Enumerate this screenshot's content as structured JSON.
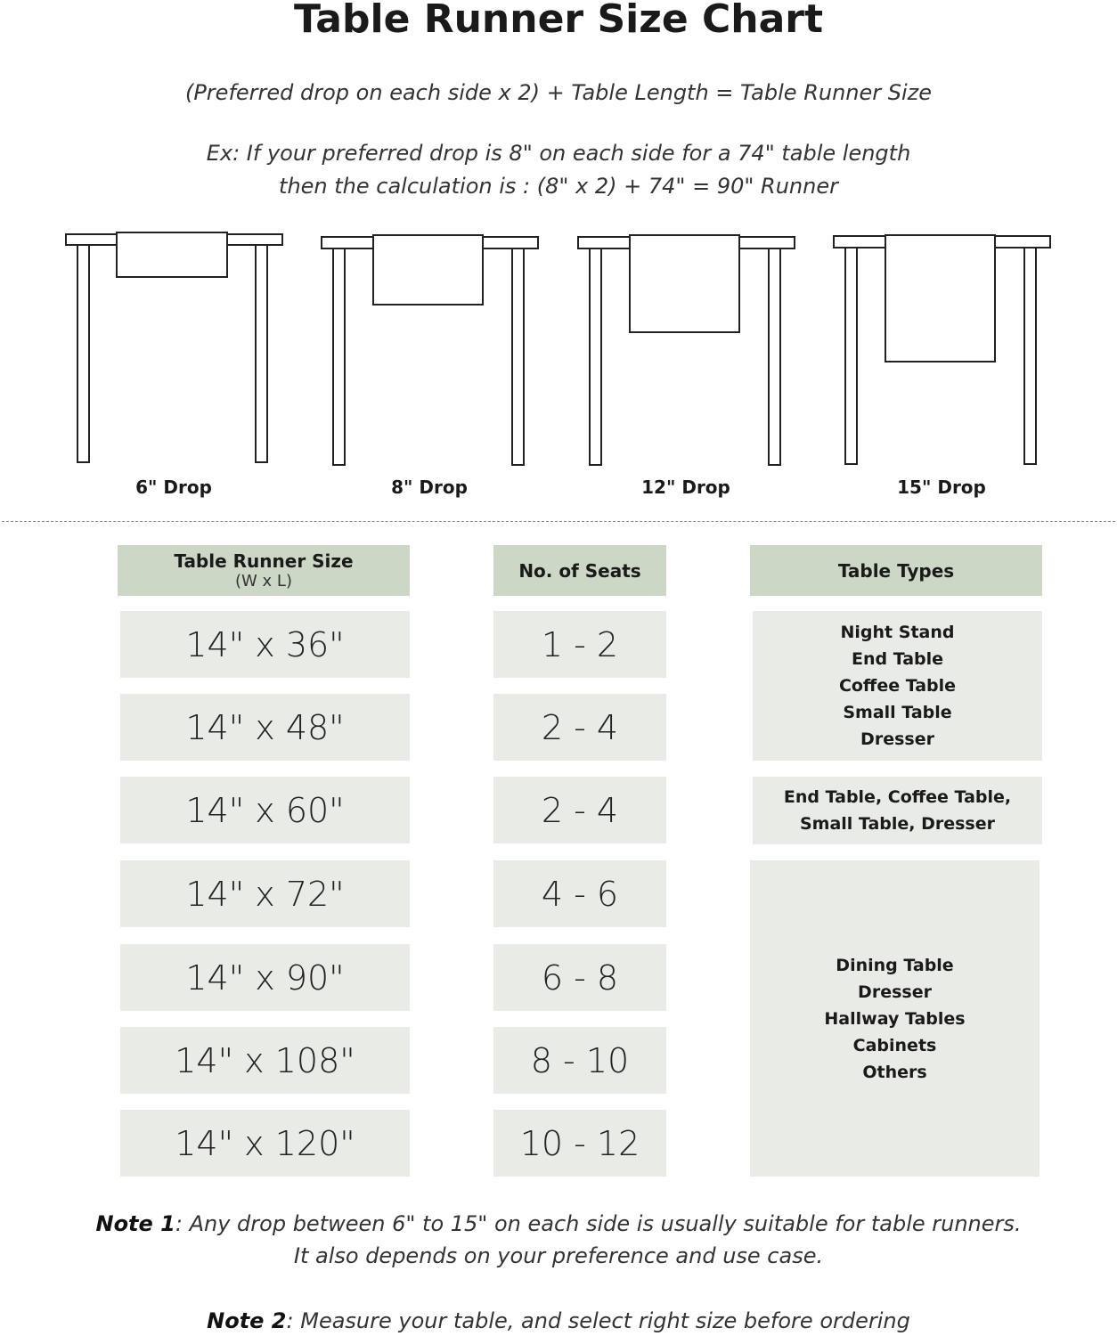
{
  "title": "Table Runner Size Chart",
  "formula": "(Preferred drop on each side x 2) + Table Length = Table Runner Size",
  "example_line1": "Ex: If your preferred drop is 8\" on each side for a 74\" table length",
  "example_line2": "then the calculation is : (8\" x 2) + 74\" = 90\" Runner",
  "drops": [
    {
      "label": "6\" Drop",
      "inches": 6
    },
    {
      "label": "8\" Drop",
      "inches": 8
    },
    {
      "label": "12\" Drop",
      "inches": 12
    },
    {
      "label": "15\" Drop",
      "inches": 15
    }
  ],
  "table": {
    "headers": {
      "size": "Table Runner Size",
      "size_sub": "(W x L)",
      "seats": "No. of Seats",
      "types": "Table Types"
    },
    "rows": [
      {
        "size": "14\" x 36\"",
        "seats": "1 - 2"
      },
      {
        "size": "14\" x 48\"",
        "seats": "2 - 4"
      },
      {
        "size": "14\" x 60\"",
        "seats": "2 - 4"
      },
      {
        "size": "14\" x 72\"",
        "seats": "4 - 6"
      },
      {
        "size": "14\" x 90\"",
        "seats": "6 - 8"
      },
      {
        "size": "14\" x 108\"",
        "seats": "8 - 10"
      },
      {
        "size": "14\" x 120\"",
        "seats": "10 - 12"
      }
    ],
    "type_groups": [
      {
        "lines": [
          "Night Stand",
          "End Table",
          "Coffee Table",
          "Small Table",
          "Dresser"
        ]
      },
      {
        "lines": [
          "End Table, Coffee Table,",
          "Small Table, Dresser"
        ]
      },
      {
        "lines": [
          "Dining Table",
          "Dresser",
          "Hallway Tables",
          "Cabinets",
          "Others"
        ]
      }
    ]
  },
  "note1": {
    "label": "Note 1",
    "text": ": Any drop between 6\" to 15\" on each side is usually suitable for table runners.",
    "line2": "It also depends on your preference and use case."
  },
  "note2": {
    "label": "Note 2",
    "text": ": Measure your table, and select right size before ordering"
  },
  "colors": {
    "header": "#ccd7c5",
    "cell": "#e9ebe6"
  }
}
